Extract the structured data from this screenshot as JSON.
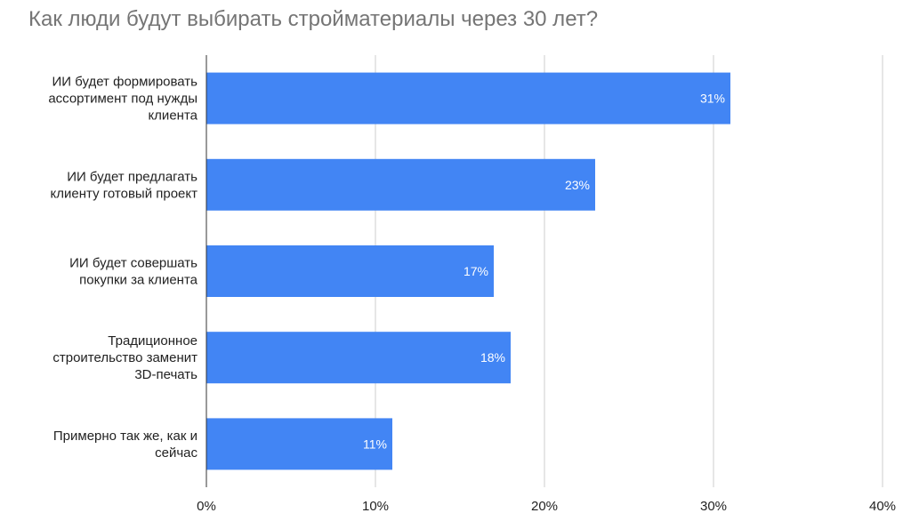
{
  "chart_data": {
    "type": "bar",
    "orientation": "horizontal",
    "title": "Как люди будут выбирать стройматериалы через 30 лет?",
    "categories": [
      [
        "ИИ будет формировать",
        "ассортимент под нужды",
        "клиента"
      ],
      [
        "ИИ будет предлагать",
        "клиенту готовый проект"
      ],
      [
        "ИИ будет совершать",
        "покупки за клиента"
      ],
      [
        "Традиционное",
        "строительство заменит",
        "3D-печать"
      ],
      [
        "Примерно так же, как и",
        "сейчас"
      ]
    ],
    "values": [
      31,
      23,
      17,
      18,
      11
    ],
    "data_labels": [
      "31%",
      "23%",
      "17%",
      "18%",
      "11%"
    ],
    "xlim": [
      0,
      40
    ],
    "xticks": [
      0,
      10,
      20,
      30,
      40
    ],
    "xtick_labels": [
      "0%",
      "10%",
      "20%",
      "30%",
      "40%"
    ],
    "grid": true,
    "legend": "none",
    "bar_color": "#4285f4"
  }
}
